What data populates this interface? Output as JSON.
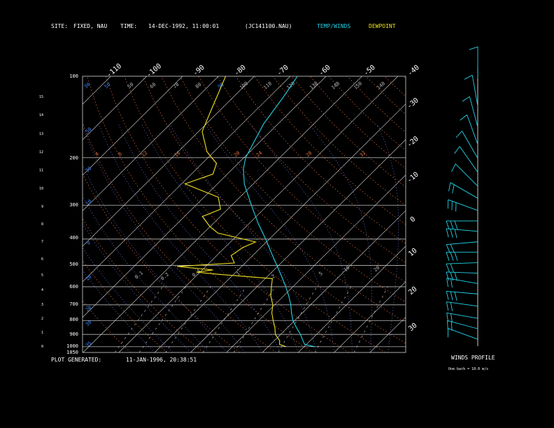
{
  "header": {
    "site_label": "SITE:",
    "site_value": "FIXED, NAU",
    "time_label": "TIME:",
    "time_value": "14-DEC-1992, 11:00:01",
    "file_id": "(JC141100.NAU)",
    "temp_winds_label": "TEMP/WINDS",
    "dewpoint_label": "DEWPOINT"
  },
  "footer": {
    "plot_generated_label": "PLOT GENERATED:",
    "plot_generated_value": "11-JAN-1996, 20:38:51"
  },
  "winds_panel": {
    "title": "WINDS PROFILE",
    "note": "One barb = 10.0 m/s"
  },
  "colors": {
    "background": "#000000",
    "temp": "#22d3e8",
    "dewpoint": "#f0e020",
    "isobar": "#d8d8d8",
    "isotherm": "#d8d8d8",
    "dry_adiabat": "#e07040",
    "moist_adiabat": "#8888ff",
    "mixing_ratio": "#d0d0d0",
    "label_blue": "#3b82f6",
    "label_orange": "#e07040",
    "label_gray": "#bbbbbb"
  },
  "chart_data": {
    "type": "line",
    "x_domain_temp_c": [
      -50,
      40
    ],
    "isobar_labels": [
      "100",
      "200",
      "300",
      "400",
      "500",
      "600",
      "700",
      "800",
      "900",
      "1000",
      "1050"
    ],
    "pressure_levels_hpa": [
      100,
      200,
      300,
      400,
      500,
      600,
      700,
      800,
      900,
      1000,
      1050
    ],
    "height_km_labels": [
      "0",
      "1",
      "2",
      "3",
      "4",
      "5",
      "6",
      "7",
      "8",
      "9",
      "10",
      "11",
      "12",
      "13",
      "14",
      "15"
    ],
    "isotherm_labels_top": [
      "-110",
      "-100",
      "-90",
      "-80",
      "-70",
      "-60",
      "-50",
      "-40"
    ],
    "isotherm_labels_right": [
      "-30",
      "-20",
      "-10",
      "0",
      "10",
      "20",
      "30"
    ],
    "theta_labels_row1": [
      "30",
      "50",
      "50",
      "60",
      "70",
      "80",
      "90",
      "100",
      "110",
      "120",
      "130",
      "140",
      "150",
      "140"
    ],
    "theta_labels_row2": [
      "4",
      "8",
      "12",
      "16",
      "20",
      "24",
      "28",
      "32"
    ],
    "theta_labels_left": [
      "50",
      "30",
      "10",
      "0",
      "10",
      "20",
      "30",
      "35"
    ],
    "mixing_ratio_labels": [
      "0.1",
      "0.2",
      "0.4",
      "1",
      "2",
      "5",
      "10",
      "20"
    ],
    "temperature_profile": [
      {
        "p": 1000,
        "t": 13.0
      },
      {
        "p": 980,
        "t": 9.5
      },
      {
        "p": 950,
        "t": 8.0
      },
      {
        "p": 900,
        "t": 5.5
      },
      {
        "p": 850,
        "t": 2.5
      },
      {
        "p": 800,
        "t": -0.5
      },
      {
        "p": 750,
        "t": -3.0
      },
      {
        "p": 700,
        "t": -5.5
      },
      {
        "p": 650,
        "t": -8.5
      },
      {
        "p": 600,
        "t": -12.0
      },
      {
        "p": 550,
        "t": -16.0
      },
      {
        "p": 500,
        "t": -20.5
      },
      {
        "p": 450,
        "t": -25.5
      },
      {
        "p": 400,
        "t": -31.0
      },
      {
        "p": 350,
        "t": -37.5
      },
      {
        "p": 300,
        "t": -44.5
      },
      {
        "p": 250,
        "t": -52.5
      },
      {
        "p": 220,
        "t": -57.0
      },
      {
        "p": 200,
        "t": -59.5
      },
      {
        "p": 150,
        "t": -64.0
      },
      {
        "p": 120,
        "t": -66.0
      },
      {
        "p": 100,
        "t": -68.0
      }
    ],
    "dewpoint_profile": [
      {
        "p": 1000,
        "t": 5.0
      },
      {
        "p": 980,
        "t": 2.5
      },
      {
        "p": 950,
        "t": 1.5
      },
      {
        "p": 900,
        "t": -1.5
      },
      {
        "p": 850,
        "t": -3.5
      },
      {
        "p": 800,
        "t": -6.0
      },
      {
        "p": 750,
        "t": -8.5
      },
      {
        "p": 700,
        "t": -10.5
      },
      {
        "p": 650,
        "t": -13.5
      },
      {
        "p": 600,
        "t": -16.0
      },
      {
        "p": 560,
        "t": -18.0
      },
      {
        "p": 540,
        "t": -34.0
      },
      {
        "p": 530,
        "t": -41.0
      },
      {
        "p": 520,
        "t": -37.0
      },
      {
        "p": 505,
        "t": -48.0
      },
      {
        "p": 490,
        "t": -33.0
      },
      {
        "p": 460,
        "t": -36.0
      },
      {
        "p": 430,
        "t": -35.0
      },
      {
        "p": 410,
        "t": -33.0
      },
      {
        "p": 380,
        "t": -46.0
      },
      {
        "p": 360,
        "t": -50.0
      },
      {
        "p": 330,
        "t": -55.0
      },
      {
        "p": 310,
        "t": -52.0
      },
      {
        "p": 280,
        "t": -56.0
      },
      {
        "p": 250,
        "t": -69.0
      },
      {
        "p": 230,
        "t": -64.0
      },
      {
        "p": 210,
        "t": -66.0
      },
      {
        "p": 190,
        "t": -72.0
      },
      {
        "p": 160,
        "t": -79.0
      },
      {
        "p": 130,
        "t": -83.0
      },
      {
        "p": 100,
        "t": -88.0
      }
    ],
    "winds": [
      {
        "h_km": 0.4,
        "speed_ms": 14,
        "dir_deg": 250
      },
      {
        "h_km": 1.0,
        "speed_ms": 17,
        "dir_deg": 255
      },
      {
        "h_km": 1.6,
        "speed_ms": 17,
        "dir_deg": 260
      },
      {
        "h_km": 2.3,
        "speed_ms": 20,
        "dir_deg": 262
      },
      {
        "h_km": 3.0,
        "speed_ms": 25,
        "dir_deg": 265
      },
      {
        "h_km": 3.6,
        "speed_ms": 22,
        "dir_deg": 260
      },
      {
        "h_km": 4.2,
        "speed_ms": 30,
        "dir_deg": 268
      },
      {
        "h_km": 4.8,
        "speed_ms": 20,
        "dir_deg": 272
      },
      {
        "h_km": 5.4,
        "speed_ms": 25,
        "dir_deg": 270
      },
      {
        "h_km": 6.0,
        "speed_ms": 22,
        "dir_deg": 275
      },
      {
        "h_km": 6.6,
        "speed_ms": 30,
        "dir_deg": 265
      },
      {
        "h_km": 7.2,
        "speed_ms": 30,
        "dir_deg": 270
      },
      {
        "h_km": 7.8,
        "speed_ms": 25,
        "dir_deg": 250
      },
      {
        "h_km": 8.5,
        "speed_ms": 15,
        "dir_deg": 240
      },
      {
        "h_km": 9.2,
        "speed_ms": 12,
        "dir_deg": 225
      },
      {
        "h_km": 10.0,
        "speed_ms": 12,
        "dir_deg": 215
      },
      {
        "h_km": 10.8,
        "speed_ms": 12,
        "dir_deg": 210
      },
      {
        "h_km": 11.6,
        "speed_ms": 10,
        "dir_deg": 200
      },
      {
        "h_km": 12.6,
        "speed_ms": 8,
        "dir_deg": 195
      },
      {
        "h_km": 13.8,
        "speed_ms": 8,
        "dir_deg": 190
      },
      {
        "h_km": 15.4,
        "speed_ms": 5,
        "dir_deg": 180
      }
    ]
  }
}
